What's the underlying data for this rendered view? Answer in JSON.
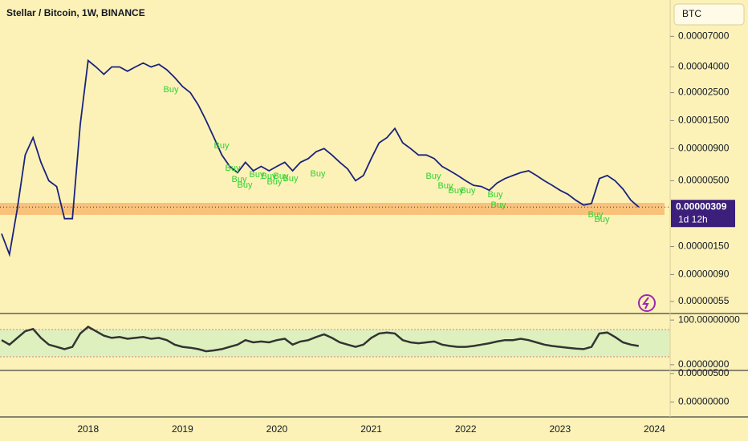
{
  "chart_data": [
    {
      "type": "line",
      "title": "Stellar / Bitcoin, 1W, BINANCE",
      "currency": "BTC",
      "color": "#1a237e",
      "log_scale": true,
      "categories": [
        null,
        null,
        null,
        null,
        null,
        null,
        null,
        null,
        null,
        null,
        null,
        "2018",
        null,
        null,
        null,
        null,
        null,
        null,
        null,
        null,
        null,
        null,
        null,
        "2019",
        null,
        null,
        null,
        null,
        null,
        null,
        null,
        null,
        null,
        null,
        null,
        "2020",
        null,
        null,
        null,
        null,
        null,
        null,
        null,
        null,
        null,
        null,
        null,
        "2021",
        null,
        null,
        null,
        null,
        null,
        null,
        null,
        null,
        null,
        null,
        null,
        "2022",
        null,
        null,
        null,
        null,
        null,
        null,
        null,
        null,
        null,
        null,
        null,
        "2023",
        null,
        null,
        null,
        null,
        null,
        null,
        null,
        null,
        null,
        null,
        null,
        "2024"
      ],
      "values": [
        1.9e-06,
        1.3e-06,
        3e-06,
        8e-06,
        1.1e-05,
        7e-06,
        5e-06,
        4.5e-06,
        2.5e-06,
        2.5e-06,
        1.4e-05,
        4.5e-05,
        4e-05,
        3.5e-05,
        4e-05,
        4e-05,
        3.7e-05,
        4e-05,
        4.3e-05,
        4e-05,
        4.2e-05,
        3.8e-05,
        3.3e-05,
        2.8e-05,
        2.5e-05,
        2e-05,
        1.5e-05,
        1.1e-05,
        8e-06,
        6.5e-06,
        5.8e-06,
        7e-06,
        6e-06,
        6.5e-06,
        6e-06,
        6.5e-06,
        7e-06,
        6e-06,
        7e-06,
        7.5e-06,
        8.5e-06,
        9e-06,
        8e-06,
        7e-06,
        6.2e-06,
        5e-06,
        5.5e-06,
        7.5e-06,
        1e-05,
        1.1e-05,
        1.3e-05,
        1e-05,
        9e-06,
        8e-06,
        8e-06,
        7.5e-06,
        6.5e-06,
        6e-06,
        5.5e-06,
        5e-06,
        4.6e-06,
        4.5e-06,
        4.2e-06,
        4.8e-06,
        5.2e-06,
        5.5e-06,
        5.8e-06,
        6e-06,
        5.5e-06,
        5e-06,
        4.6e-06,
        4.2e-06,
        3.9e-06,
        3.5e-06,
        3.2e-06,
        3.3e-06,
        5.2e-06,
        5.5e-06,
        5e-06,
        4.3e-06,
        3.5e-06,
        3.09e-06,
        null,
        null
      ],
      "ylim": [
        4.48e-07,
        0.000136
      ],
      "yticks": [
        {
          "value": 7e-05,
          "label": "0.00007000"
        },
        {
          "value": 4e-05,
          "label": "0.00004000"
        },
        {
          "value": 2.5e-05,
          "label": "0.00002500"
        },
        {
          "value": 1.5e-05,
          "label": "0.00001500"
        },
        {
          "value": 9e-06,
          "label": "0.00000900"
        },
        {
          "value": 5e-06,
          "label": "0.00000500"
        },
        {
          "value": 1.5e-06,
          "label": "0.00000150"
        },
        {
          "value": 9e-07,
          "label": "0.00000090"
        },
        {
          "value": 5.5e-07,
          "label": "0.00000055"
        }
      ],
      "last_price": {
        "value": 3.09e-06,
        "label": "0.00000309"
      },
      "countdown": "1d 12h",
      "annotations": [
        "Buy",
        "Buy",
        "Buy",
        "Buy",
        "Buy",
        "Buy",
        "Buy",
        "Buy",
        "Buy",
        "Buy",
        "Buy",
        "Buy",
        "Buy",
        "Buy",
        "Buy",
        "Buy",
        "Buy",
        "Buy",
        "Buy"
      ]
    },
    {
      "type": "line",
      "color": "#333333",
      "values": [
        55,
        45,
        60,
        75,
        80,
        60,
        45,
        40,
        35,
        40,
        70,
        85,
        75,
        65,
        60,
        62,
        58,
        60,
        62,
        58,
        60,
        55,
        45,
        40,
        38,
        35,
        30,
        32,
        35,
        40,
        45,
        55,
        50,
        52,
        50,
        55,
        58,
        45,
        52,
        55,
        62,
        68,
        60,
        50,
        45,
        40,
        45,
        60,
        70,
        72,
        70,
        55,
        50,
        48,
        50,
        52,
        45,
        42,
        40,
        40,
        42,
        45,
        48,
        52,
        55,
        55,
        58,
        55,
        50,
        45,
        42,
        40,
        38,
        36,
        35,
        40,
        70,
        72,
        62,
        50,
        45,
        42,
        null,
        null
      ],
      "ylim": [
        -11,
        111
      ],
      "yticks": [
        {
          "value": 100,
          "label": "100.00000000"
        },
        {
          "value": 0,
          "label": "0.00000000"
        }
      ]
    },
    {
      "type": "axis",
      "ylim": [
        -2.5e-06,
        5.4e-06
      ],
      "yticks": [
        {
          "value": 5e-06,
          "label": "0.00000500"
        },
        {
          "value": 0,
          "label": "0.00000000"
        }
      ]
    }
  ]
}
